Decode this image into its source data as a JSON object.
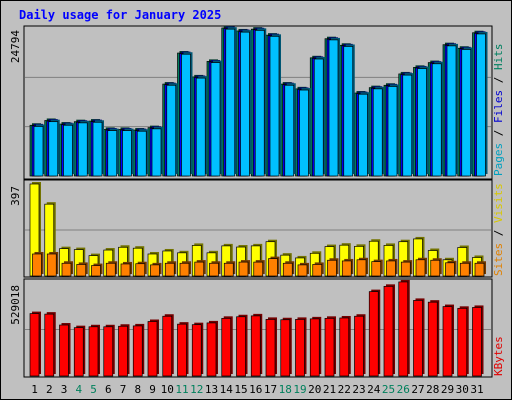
{
  "chart_data": {
    "type": "bar",
    "title": "Daily usage for January 2025",
    "categories": [
      "1",
      "2",
      "3",
      "4",
      "5",
      "6",
      "7",
      "8",
      "9",
      "10",
      "11",
      "12",
      "13",
      "14",
      "15",
      "16",
      "17",
      "18",
      "19",
      "20",
      "21",
      "22",
      "23",
      "24",
      "25",
      "26",
      "27",
      "28",
      "29",
      "30",
      "31"
    ],
    "weekend_days": [
      "4",
      "5",
      "11",
      "12",
      "18",
      "19",
      "25",
      "26"
    ],
    "panels": [
      {
        "id": "hits",
        "ymax_label": "24794",
        "ylim": [
          0,
          24794
        ],
        "legend": [
          {
            "text": "Pages",
            "color": "#00a0c0"
          },
          {
            "text": " / ",
            "color": "#000000"
          },
          {
            "text": "Files",
            "color": "#0000d0"
          },
          {
            "text": " / ",
            "color": "#000000"
          },
          {
            "text": "Hits",
            "color": "#008060"
          }
        ],
        "series": [
          {
            "name": "Hits",
            "color": "#00805c",
            "values": [
              8500,
              9300,
              8700,
              9100,
              9200,
              7800,
              7800,
              7700,
              8100,
              15400,
              20600,
              16600,
              19200,
              24800,
              24300,
              24600,
              23600,
              15400,
              14600,
              19800,
              23000,
              21900,
              13900,
              14800,
              15200,
              17100,
              18200,
              19000,
              22000,
              21400,
              24000
            ]
          },
          {
            "name": "Files",
            "color": "#0000ff",
            "values": [
              8400,
              9200,
              8600,
              9000,
              9100,
              7700,
              7700,
              7600,
              8000,
              15300,
              20500,
              16500,
              19100,
              24700,
              24200,
              24500,
              23500,
              15300,
              14500,
              19700,
              22900,
              21800,
              13800,
              14700,
              15100,
              17000,
              18100,
              18900,
              21900,
              21300,
              23900
            ]
          },
          {
            "name": "Pages",
            "color": "#00c0ff",
            "values": [
              8300,
              9100,
              8500,
              8900,
              9000,
              7600,
              7600,
              7500,
              7900,
              15200,
              20400,
              16400,
              19000,
              24600,
              24100,
              24400,
              23400,
              15200,
              14400,
              19600,
              22800,
              21700,
              13700,
              14600,
              15000,
              16900,
              18000,
              18800,
              21800,
              21200,
              23800
            ]
          }
        ]
      },
      {
        "id": "sites_visits",
        "ymax_label": "397",
        "ylim": [
          0,
          397
        ],
        "legend": [
          {
            "text": "Sites",
            "color": "#e08000"
          },
          {
            "text": " / ",
            "color": "#000000"
          },
          {
            "text": "Visits",
            "color": "#d8c800"
          }
        ],
        "series": [
          {
            "name": "Visits",
            "color": "#ffff00",
            "values": [
              397,
              310,
              118,
              114,
              88,
              112,
              124,
              120,
              95,
              108,
              100,
              132,
              100,
              130,
              125,
              130,
              148,
              90,
              78,
              98,
              127,
              133,
              128,
              150,
              132,
              148,
              160,
              110,
              70,
              123,
              80
            ]
          },
          {
            "name": "Sites",
            "color": "#ff8000",
            "values": [
              95,
              95,
              55,
              50,
              45,
              55,
              52,
              53,
              48,
              55,
              55,
              60,
              55,
              55,
              60,
              60,
              75,
              55,
              48,
              50,
              68,
              65,
              70,
              62,
              65,
              60,
              70,
              68,
              57,
              55,
              55
            ]
          }
        ]
      },
      {
        "id": "kbytes",
        "ymax_label": "529018",
        "ylim": [
          0,
          529018
        ],
        "legend": [
          {
            "text": "KBytes",
            "color": "#e00000"
          }
        ],
        "series": [
          {
            "name": "KBytes",
            "color": "#ff0000",
            "values": [
              355000,
              352000,
              290000,
              275000,
              280000,
              280000,
              283000,
              285000,
              310000,
              340000,
              295000,
              292000,
              302000,
              328000,
              337000,
              342000,
              322000,
              320000,
              322000,
              325000,
              328000,
              330000,
              340000,
              480000,
              510000,
              535000,
              430000,
              420000,
              395000,
              385000,
              390000
            ]
          }
        ]
      }
    ]
  }
}
